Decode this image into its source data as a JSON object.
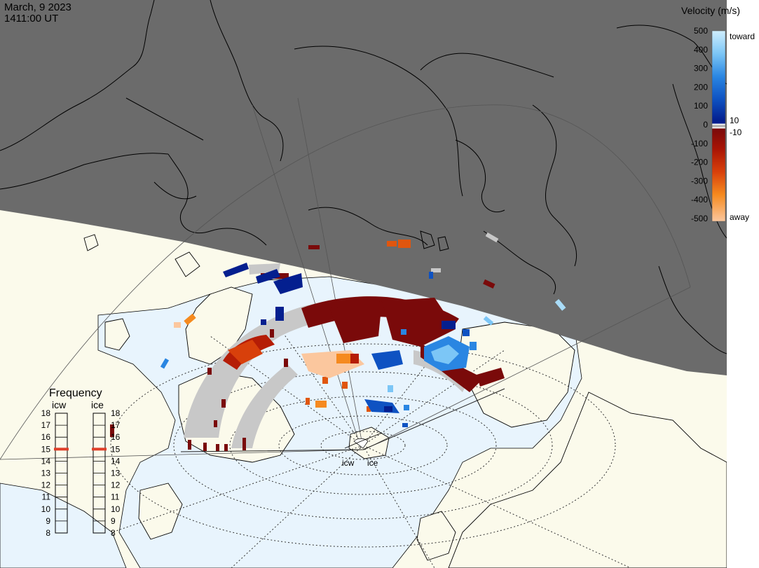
{
  "header": {
    "date": "March, 9 2023",
    "time": "1411:00 UT"
  },
  "colorbar": {
    "title": "Velocity (m/s)",
    "ticks": [
      "500",
      "400",
      "300",
      "200",
      "100",
      "0",
      "-100",
      "-200",
      "-300",
      "-400",
      "-500"
    ],
    "near_zero_labels": [
      "10",
      "-10"
    ],
    "end_labels": {
      "toward": "toward",
      "away": "away"
    },
    "colors": [
      "#cfeefd",
      "#7cc6f6",
      "#2a86e2",
      "#0e52c2",
      "#041f8f",
      "#cfcfcf",
      "#7a0a0a",
      "#b51d06",
      "#e0560e",
      "#f58a1f",
      "#fbc79e"
    ]
  },
  "frequency_panel": {
    "title": "Frequency",
    "columns": [
      {
        "label": "icw",
        "value_mhz": 15,
        "marker_color": "#e0402a"
      },
      {
        "label": "ice",
        "value_mhz": 15,
        "marker_color": "#e0402a"
      }
    ],
    "scale": [
      "18",
      "17",
      "16",
      "15",
      "14",
      "13",
      "12",
      "11",
      "10",
      "9",
      "8"
    ]
  },
  "stations": [
    "icw",
    "ice"
  ],
  "map": {
    "night_color": "#6b6b6b",
    "day_color": "#fbfaeb",
    "ocean_color": "#e8f4fd",
    "land_outline": "#000000",
    "ground_scatter_color": "#c8c8c8"
  }
}
